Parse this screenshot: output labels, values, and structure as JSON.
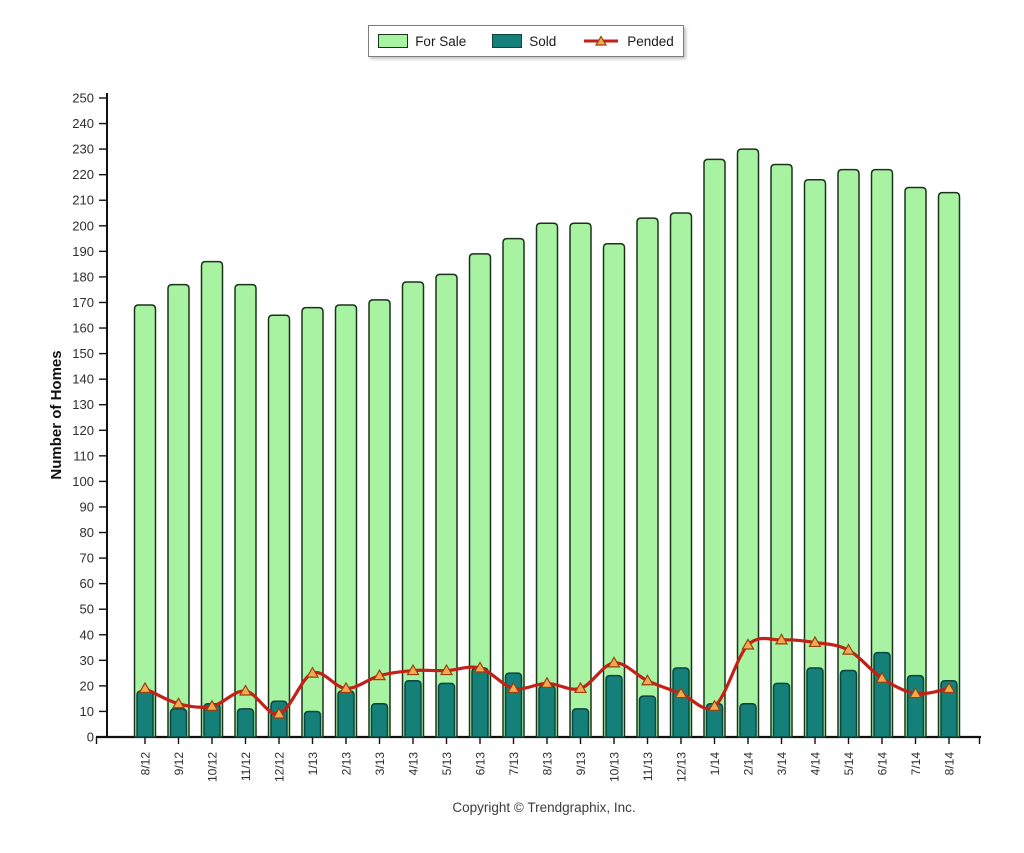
{
  "legend": {
    "items": [
      {
        "label": "For Sale"
      },
      {
        "label": "Sold"
      },
      {
        "label": "Pended"
      }
    ]
  },
  "chart_data": {
    "type": "bar+line",
    "title": "",
    "ylabel": "Number of Homes",
    "xlabel": "",
    "ylim": [
      0,
      250
    ],
    "ytick_step": 10,
    "grid": false,
    "legend_position": "top-center",
    "categories": [
      "8/12",
      "9/12",
      "10/12",
      "11/12",
      "12/12",
      "1/13",
      "2/13",
      "3/13",
      "4/13",
      "5/13",
      "6/13",
      "7/13",
      "8/13",
      "9/13",
      "10/13",
      "11/13",
      "12/13",
      "1/14",
      "2/14",
      "3/14",
      "4/14",
      "5/14",
      "6/14",
      "7/14",
      "8/14"
    ],
    "series": [
      {
        "name": "For Sale",
        "type": "bar",
        "color": "#a8f3a2",
        "border": "#1b321b",
        "values": [
          169,
          177,
          186,
          177,
          165,
          168,
          169,
          171,
          178,
          181,
          189,
          195,
          201,
          201,
          193,
          203,
          205,
          226,
          230,
          224,
          218,
          222,
          222,
          215,
          213
        ]
      },
      {
        "name": "Sold",
        "type": "bar",
        "color": "#157f7a",
        "border": "#0a4540",
        "values": [
          18,
          11,
          13,
          11,
          14,
          10,
          18,
          13,
          22,
          21,
          27,
          25,
          20,
          11,
          24,
          16,
          27,
          13,
          13,
          21,
          27,
          26,
          33,
          24,
          22
        ]
      },
      {
        "name": "Pended",
        "type": "line",
        "color": "#c32017",
        "marker": "triangle-up",
        "marker_fill": "#f3a94f",
        "marker_stroke": "#96410f",
        "values": [
          19,
          13,
          12,
          18,
          9,
          25,
          19,
          24,
          26,
          26,
          27,
          19,
          21,
          19,
          29,
          22,
          17,
          12,
          36,
          38,
          37,
          34,
          23,
          17,
          19
        ]
      }
    ],
    "axis_color": "#111111",
    "text_color": "#2e2e2e"
  },
  "footer": {
    "copyright": "Copyright © Trendgraphix, Inc."
  }
}
